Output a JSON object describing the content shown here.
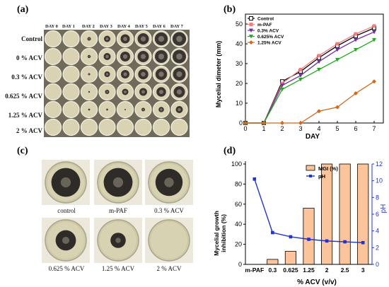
{
  "panels": {
    "a": "(a)",
    "b": "(b)",
    "c": "(c)",
    "d": "(d)"
  },
  "panel_a": {
    "days": [
      "DAY 0",
      "DAY 1",
      "DAY 2",
      "DAY 3",
      "DAY 4",
      "DAY 5",
      "DAY 6",
      "DAY 7"
    ],
    "rows": [
      "Control",
      "0 % ACV",
      "0.3 % ACV",
      "0.625 % ACV",
      "1.25 % ACV",
      "2 % ACV"
    ],
    "colony_fraction": [
      [
        0,
        0,
        0.25,
        0.45,
        0.65,
        0.8,
        0.92,
        0.96
      ],
      [
        0,
        0,
        0.22,
        0.5,
        0.7,
        0.8,
        0.9,
        0.95
      ],
      [
        0,
        0,
        0.15,
        0.4,
        0.6,
        0.72,
        0.82,
        0.9
      ],
      [
        0,
        0,
        0.12,
        0.3,
        0.45,
        0.55,
        0.68,
        0.8
      ],
      [
        0,
        0,
        0,
        0,
        0.1,
        0.25,
        0.38,
        0.5
      ],
      [
        0,
        0,
        0,
        0,
        0,
        0,
        0,
        0
      ]
    ]
  },
  "panel_c": {
    "captions": [
      "control",
      "m-PAF",
      "0.3 % ACV",
      "0.625 % ACV",
      "1.25 % ACV",
      "2 % ACV"
    ],
    "colony_fraction": [
      0.85,
      0.85,
      0.8,
      0.6,
      0.45,
      0
    ]
  },
  "chart_data": [
    {
      "type": "line",
      "ylabel": "Mycelial dimeter (mm)",
      "xlabel": "DAY",
      "x": [
        0,
        1,
        2,
        3,
        4,
        5,
        6,
        7
      ],
      "xlim": [
        0,
        7.5
      ],
      "ylim": [
        0,
        55
      ],
      "yticks": [
        0,
        10,
        20,
        30,
        40,
        50
      ],
      "xticks": [
        0,
        1,
        2,
        3,
        4,
        5,
        6,
        7
      ],
      "legend_position": "top-left",
      "series": [
        {
          "name": "Control",
          "color": "#000000",
          "marker": "open-square",
          "values": [
            0,
            0,
            21,
            26,
            33,
            39,
            44,
            48
          ]
        },
        {
          "name": "m-PAF",
          "color": "#f08080",
          "marker": "square",
          "values": [
            0,
            0,
            20,
            27,
            34,
            40,
            45,
            49
          ]
        },
        {
          "name": "0.3% ACV",
          "color": "#7030a0",
          "marker": "triangle-down",
          "values": [
            0,
            0,
            19,
            24,
            31,
            37,
            42,
            46
          ]
        },
        {
          "name": "0.625% ACV",
          "color": "#22aa22",
          "marker": "triangle-down",
          "values": [
            0,
            0,
            17,
            22,
            27,
            32,
            37,
            42
          ]
        },
        {
          "name": "1.25% ACV",
          "color": "#d2691e",
          "marker": "diamond",
          "values": [
            0,
            0,
            0,
            0,
            6,
            8,
            15,
            21
          ]
        }
      ]
    },
    {
      "type": "bar+line",
      "categories": [
        "m-PAF",
        "0.3",
        "0.625",
        "1.25",
        "2",
        "2.5",
        "3"
      ],
      "xlabel": "% ACV (v/v)",
      "ylabel_left": "Mycelial growth inhibition (%)",
      "ylabel_right": "pH",
      "ylim_left": [
        0,
        100
      ],
      "ylim_right": [
        0,
        12
      ],
      "yticks_left": [
        0,
        20,
        40,
        60,
        80,
        100
      ],
      "yticks_right": [
        0,
        2,
        4,
        6,
        8,
        10,
        12
      ],
      "legend_position": "top-left",
      "series": [
        {
          "name": "MGI (%)",
          "type": "bar",
          "axis": "left",
          "color": "#fbc49a",
          "values": [
            0,
            5,
            13,
            56,
            100,
            100,
            100
          ]
        },
        {
          "name": "pH",
          "type": "line",
          "axis": "right",
          "color": "#2233cc",
          "values": [
            10.2,
            3.8,
            3.3,
            3.0,
            2.8,
            2.7,
            2.6
          ]
        }
      ]
    }
  ]
}
